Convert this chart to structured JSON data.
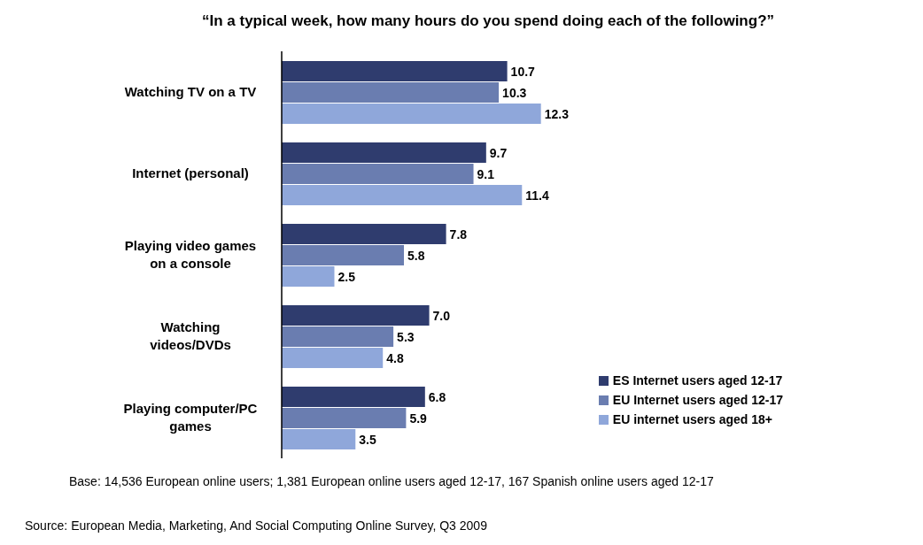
{
  "chart_data": {
    "type": "bar",
    "orientation": "horizontal",
    "title": "“In a typical week, how many hours do you spend doing each of the following?”",
    "categories": [
      "Watching TV on a TV",
      "Internet (personal)",
      "Playing video games on a console",
      "Watching videos/DVDs",
      "Playing computer/PC games"
    ],
    "series": [
      {
        "name": "ES Internet users aged 12-17",
        "color": "#2f3c6e",
        "values": [
          10.7,
          9.7,
          7.8,
          7.0,
          6.8
        ],
        "value_labels": [
          "10.7",
          "9.7",
          "7.8",
          "7.0",
          "6.8"
        ]
      },
      {
        "name": "EU Internet users aged 12-17",
        "color": "#6a7db0",
        "values": [
          10.3,
          9.1,
          5.8,
          5.3,
          5.9
        ],
        "value_labels": [
          "10.3",
          "9.1",
          "5.8",
          "5.3",
          "5.9"
        ]
      },
      {
        "name": "EU internet users aged 18+",
        "color": "#8fa7da",
        "values": [
          12.3,
          11.4,
          2.5,
          4.8,
          3.5
        ],
        "value_labels": [
          "12.3",
          "11.4",
          "2.5",
          "4.8",
          "3.5"
        ]
      }
    ],
    "legend": "bottom right",
    "annotations": [
      "Base: 14,536 European online users; 1,381 European online users aged 12-17, 167 Spanish online users aged 12-17",
      "Source: European Media, Marketing, And Social Computing Online Survey, Q3 2009"
    ]
  }
}
